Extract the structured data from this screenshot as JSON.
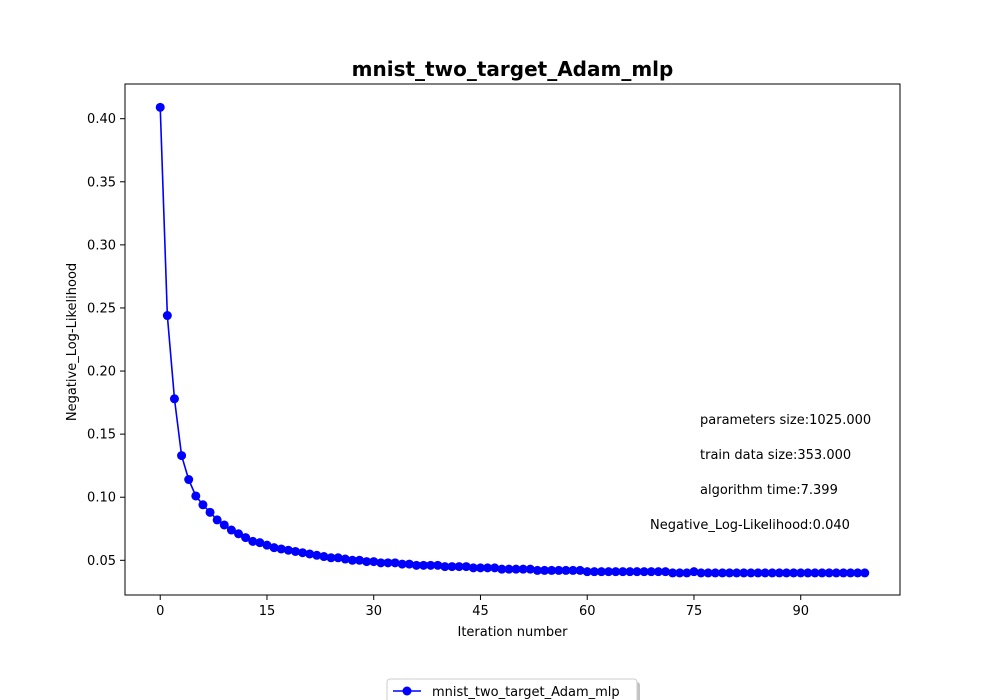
{
  "chart_data": {
    "type": "line",
    "title": "mnist_two_target_Adam_mlp",
    "xlabel": "Iteration number",
    "ylabel": "Negative_Log-Likelihood",
    "xlim": [
      -4.95,
      103.95
    ],
    "ylim": [
      0.0225,
      0.4275
    ],
    "xticks": [
      0,
      15,
      30,
      45,
      60,
      75,
      90
    ],
    "yticks": [
      0.05,
      0.1,
      0.15,
      0.2,
      0.25,
      0.3,
      0.35,
      0.4
    ],
    "ytick_labels": [
      "0.05",
      "0.10",
      "0.15",
      "0.20",
      "0.25",
      "0.30",
      "0.35",
      "0.40"
    ],
    "grid": false,
    "legend_position": "bottom-center-outside",
    "series": [
      {
        "name": "mnist_two_target_Adam_mlp",
        "color": "#0000ff",
        "marker": "circle",
        "x": [
          0,
          1,
          2,
          3,
          4,
          5,
          6,
          7,
          8,
          9,
          10,
          11,
          12,
          13,
          14,
          15,
          16,
          17,
          18,
          19,
          20,
          21,
          22,
          23,
          24,
          25,
          26,
          27,
          28,
          29,
          30,
          31,
          32,
          33,
          34,
          35,
          36,
          37,
          38,
          39,
          40,
          41,
          42,
          43,
          44,
          45,
          46,
          47,
          48,
          49,
          50,
          51,
          52,
          53,
          54,
          55,
          56,
          57,
          58,
          59,
          60,
          61,
          62,
          63,
          64,
          65,
          66,
          67,
          68,
          69,
          70,
          71,
          72,
          73,
          74,
          75,
          76,
          77,
          78,
          79,
          80,
          81,
          82,
          83,
          84,
          85,
          86,
          87,
          88,
          89,
          90,
          91,
          92,
          93,
          94,
          95,
          96,
          97,
          98,
          99
        ],
        "y": [
          0.409,
          0.244,
          0.178,
          0.133,
          0.114,
          0.101,
          0.094,
          0.088,
          0.082,
          0.078,
          0.074,
          0.071,
          0.068,
          0.065,
          0.064,
          0.062,
          0.06,
          0.059,
          0.058,
          0.057,
          0.056,
          0.055,
          0.054,
          0.053,
          0.052,
          0.052,
          0.051,
          0.05,
          0.05,
          0.049,
          0.049,
          0.048,
          0.048,
          0.048,
          0.047,
          0.047,
          0.046,
          0.046,
          0.046,
          0.046,
          0.045,
          0.045,
          0.045,
          0.045,
          0.044,
          0.044,
          0.044,
          0.044,
          0.043,
          0.043,
          0.043,
          0.043,
          0.043,
          0.042,
          0.042,
          0.042,
          0.042,
          0.042,
          0.042,
          0.042,
          0.041,
          0.041,
          0.041,
          0.041,
          0.041,
          0.041,
          0.041,
          0.041,
          0.041,
          0.041,
          0.041,
          0.041,
          0.04,
          0.04,
          0.04,
          0.041,
          0.04,
          0.04,
          0.04,
          0.04,
          0.04,
          0.04,
          0.04,
          0.04,
          0.04,
          0.04,
          0.04,
          0.04,
          0.04,
          0.04,
          0.04,
          0.04,
          0.04,
          0.04,
          0.04,
          0.04,
          0.04,
          0.04,
          0.04,
          0.04
        ]
      }
    ],
    "annotations": [
      "parameters size:1025.000",
      "train data size:353.000",
      "algorithm time:7.399",
      "Negative_Log-Likelihood:0.040"
    ]
  }
}
